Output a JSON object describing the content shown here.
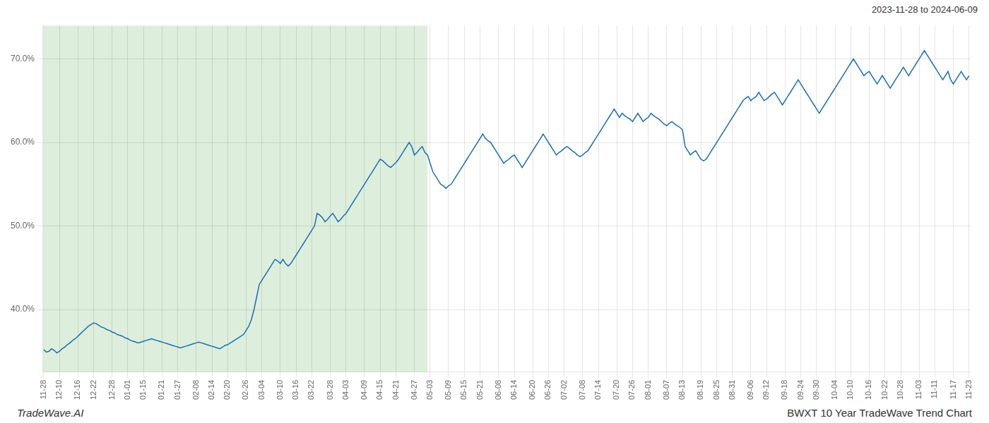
{
  "chart_data": {
    "type": "line",
    "title": "BWXT 10 Year TradeWave Trend Chart",
    "subtitle": "2023-11-28 to 2024-06-09",
    "annotations": [
      "TradeWave.AI"
    ],
    "color": "#1a6faf",
    "grid": true,
    "ylim": [
      32.5,
      74
    ],
    "yticks": [
      {
        "value": 40.0,
        "label": "40.0%"
      },
      {
        "value": 50.0,
        "label": "50.0%"
      },
      {
        "value": 60.0,
        "label": "60.0%"
      },
      {
        "value": 70.0,
        "label": "70.0%"
      }
    ],
    "shade": {
      "start": 0,
      "end": 146,
      "color": "#ddeedd"
    },
    "categories": [
      "11-28",
      null,
      null,
      null,
      null,
      null,
      "12-10",
      null,
      null,
      null,
      null,
      null,
      null,
      "12-16",
      null,
      null,
      null,
      null,
      null,
      "12-22",
      null,
      null,
      null,
      null,
      null,
      null,
      "12-28",
      null,
      null,
      null,
      null,
      null,
      "01-01",
      null,
      null,
      null,
      null,
      null,
      "01-15",
      null,
      null,
      null,
      null,
      null,
      null,
      "01-21",
      null,
      null,
      null,
      null,
      null,
      "01-27",
      null,
      null,
      null,
      null,
      null,
      null,
      "02-08",
      null,
      null,
      null,
      null,
      null,
      "02-14",
      null,
      null,
      null,
      null,
      null,
      "02-20",
      null,
      null,
      null,
      null,
      null,
      null,
      "02-26",
      null,
      null,
      null,
      null,
      null,
      "03-04",
      null,
      null,
      null,
      null,
      null,
      null,
      "03-10",
      null,
      null,
      null,
      null,
      null,
      "03-16",
      null,
      null,
      null,
      null,
      null,
      "03-22",
      null,
      null,
      null,
      null,
      null,
      null,
      "03-28",
      null,
      null,
      null,
      null,
      null,
      "04-03",
      null,
      null,
      null,
      null,
      null,
      null,
      "04-09",
      null,
      null,
      null,
      null,
      null,
      "04-15",
      null,
      null,
      null,
      null,
      null,
      "04-21",
      null,
      null,
      null,
      null,
      null,
      null,
      "04-27",
      null,
      null,
      null,
      null,
      null,
      "05-03",
      null,
      null,
      null,
      null,
      null,
      null,
      "05-09",
      null,
      null,
      null,
      null,
      null,
      "05-15",
      null,
      null,
      null,
      null,
      null,
      "05-21",
      null,
      null,
      null,
      null,
      null,
      null,
      "06-08",
      null,
      null,
      null,
      null,
      null,
      "06-14",
      null,
      null,
      null,
      null,
      null,
      null,
      "06-20",
      null,
      null,
      null,
      null,
      null,
      "06-26",
      null,
      null,
      null,
      null,
      null,
      "07-02",
      null,
      null,
      null,
      null,
      null,
      null,
      "07-08",
      null,
      null,
      null,
      null,
      null,
      "07-14",
      null,
      null,
      null,
      null,
      null,
      null,
      "07-20",
      null,
      null,
      null,
      null,
      null,
      "07-26",
      null,
      null,
      null,
      null,
      null,
      "08-01",
      null,
      null,
      null,
      null,
      null,
      null,
      "08-07",
      null,
      null,
      null,
      null,
      null,
      "08-13",
      null,
      null,
      null,
      null,
      null,
      null,
      "08-19",
      null,
      null,
      null,
      null,
      null,
      "08-25",
      null,
      null,
      null,
      null,
      null,
      "08-31",
      null,
      null,
      null,
      null,
      null,
      null,
      "09-06",
      null,
      null,
      null,
      null,
      null,
      "09-12",
      null,
      null,
      null,
      null,
      null,
      null,
      "09-18",
      null,
      null,
      null,
      null,
      null,
      "09-24",
      null,
      null,
      null,
      null,
      null,
      "09-30",
      null,
      null,
      null,
      null,
      null,
      null,
      "10-04",
      null,
      null,
      null,
      null,
      null,
      "10-10",
      null,
      null,
      null,
      null,
      null,
      null,
      "10-16",
      null,
      null,
      null,
      null,
      null,
      "10-22",
      null,
      null,
      null,
      null,
      null,
      "10-28",
      null,
      null,
      null,
      null,
      null,
      null,
      "11-03",
      null,
      null,
      null,
      null,
      null,
      "11-11",
      null,
      null,
      null,
      null,
      null,
      null,
      "11-17",
      null,
      null,
      null,
      null,
      null,
      "11-23"
    ],
    "values": [
      35.2,
      34.9,
      35.0,
      35.3,
      35.1,
      34.8,
      35.0,
      35.3,
      35.5,
      35.8,
      36.0,
      36.3,
      36.5,
      36.8,
      37.1,
      37.4,
      37.7,
      38.0,
      38.2,
      38.4,
      38.3,
      38.1,
      37.9,
      37.8,
      37.6,
      37.5,
      37.3,
      37.2,
      37.0,
      36.9,
      36.8,
      36.6,
      36.5,
      36.3,
      36.2,
      36.1,
      36.0,
      36.1,
      36.2,
      36.3,
      36.4,
      36.5,
      36.4,
      36.3,
      36.2,
      36.1,
      36.0,
      35.9,
      35.8,
      35.7,
      35.6,
      35.5,
      35.4,
      35.5,
      35.6,
      35.7,
      35.8,
      35.9,
      36.0,
      36.1,
      36.0,
      35.9,
      35.8,
      35.7,
      35.6,
      35.5,
      35.4,
      35.3,
      35.5,
      35.7,
      35.8,
      36.0,
      36.2,
      36.4,
      36.6,
      36.8,
      37.0,
      37.5,
      38.0,
      38.8,
      40.0,
      41.5,
      43.0,
      43.5,
      44.0,
      44.5,
      45.0,
      45.5,
      46.0,
      45.8,
      45.5,
      46.0,
      45.5,
      45.2,
      45.5,
      46.0,
      46.5,
      47.0,
      47.5,
      48.0,
      48.5,
      49.0,
      49.5,
      50.0,
      51.5,
      51.3,
      51.0,
      50.5,
      50.8,
      51.2,
      51.5,
      51.0,
      50.5,
      50.8,
      51.2,
      51.5,
      52.0,
      52.5,
      53.0,
      53.5,
      54.0,
      54.5,
      55.0,
      55.5,
      56.0,
      56.5,
      57.0,
      57.5,
      58.0,
      57.8,
      57.5,
      57.2,
      57.0,
      57.3,
      57.6,
      58.0,
      58.5,
      59.0,
      59.5,
      60.0,
      59.5,
      58.5,
      58.8,
      59.2,
      59.5,
      58.8,
      58.5,
      57.5,
      56.5,
      56.0,
      55.5,
      55.0,
      54.8,
      54.5,
      54.8,
      55.0,
      55.5,
      56.0,
      56.5,
      57.0,
      57.5,
      58.0,
      58.5,
      59.0,
      59.5,
      60.0,
      60.5,
      61.0,
      60.5,
      60.2,
      60.0,
      59.5,
      59.0,
      58.5,
      58.0,
      57.5,
      57.8,
      58.0,
      58.3,
      58.5,
      58.0,
      57.5,
      57.0,
      57.5,
      58.0,
      58.5,
      59.0,
      59.5,
      60.0,
      60.5,
      61.0,
      60.5,
      60.0,
      59.5,
      59.0,
      58.5,
      58.8,
      59.0,
      59.3,
      59.5,
      59.3,
      59.0,
      58.8,
      58.5,
      58.3,
      58.5,
      58.8,
      59.0,
      59.5,
      60.0,
      60.5,
      61.0,
      61.5,
      62.0,
      62.5,
      63.0,
      63.5,
      64.0,
      63.5,
      63.0,
      63.5,
      63.2,
      63.0,
      62.8,
      62.5,
      63.0,
      63.5,
      63.0,
      62.5,
      62.8,
      63.0,
      63.5,
      63.2,
      63.0,
      62.8,
      62.5,
      62.2,
      62.0,
      62.3,
      62.5,
      62.2,
      62.0,
      61.8,
      61.5,
      59.5,
      59.0,
      58.5,
      58.8,
      59.0,
      58.5,
      58.0,
      57.8,
      58.0,
      58.5,
      59.0,
      59.5,
      60.0,
      60.5,
      61.0,
      61.5,
      62.0,
      62.5,
      63.0,
      63.5,
      64.0,
      64.5,
      65.0,
      65.3,
      65.5,
      65.0,
      65.3,
      65.5,
      66.0,
      65.5,
      65.0,
      65.2,
      65.5,
      65.8,
      66.0,
      65.5,
      65.0,
      64.5,
      65.0,
      65.5,
      66.0,
      66.5,
      67.0,
      67.5,
      67.0,
      66.5,
      66.0,
      65.5,
      65.0,
      64.5,
      64.0,
      63.5,
      64.0,
      64.5,
      65.0,
      65.5,
      66.0,
      66.5,
      67.0,
      67.5,
      68.0,
      68.5,
      69.0,
      69.5,
      70.0,
      69.5,
      69.0,
      68.5,
      68.0,
      68.3,
      68.5,
      68.0,
      67.5,
      67.0,
      67.5,
      68.0,
      67.5,
      67.0,
      66.5,
      67.0,
      67.5,
      68.0,
      68.5,
      69.0,
      68.5,
      68.0,
      68.5,
      69.0,
      69.5,
      70.0,
      70.5,
      71.0,
      70.5,
      70.0,
      69.5,
      69.0,
      68.5,
      68.0,
      67.5,
      68.0,
      68.5,
      67.5,
      67.0,
      67.5,
      68.0,
      68.5,
      68.0,
      67.5,
      68.0
    ]
  }
}
